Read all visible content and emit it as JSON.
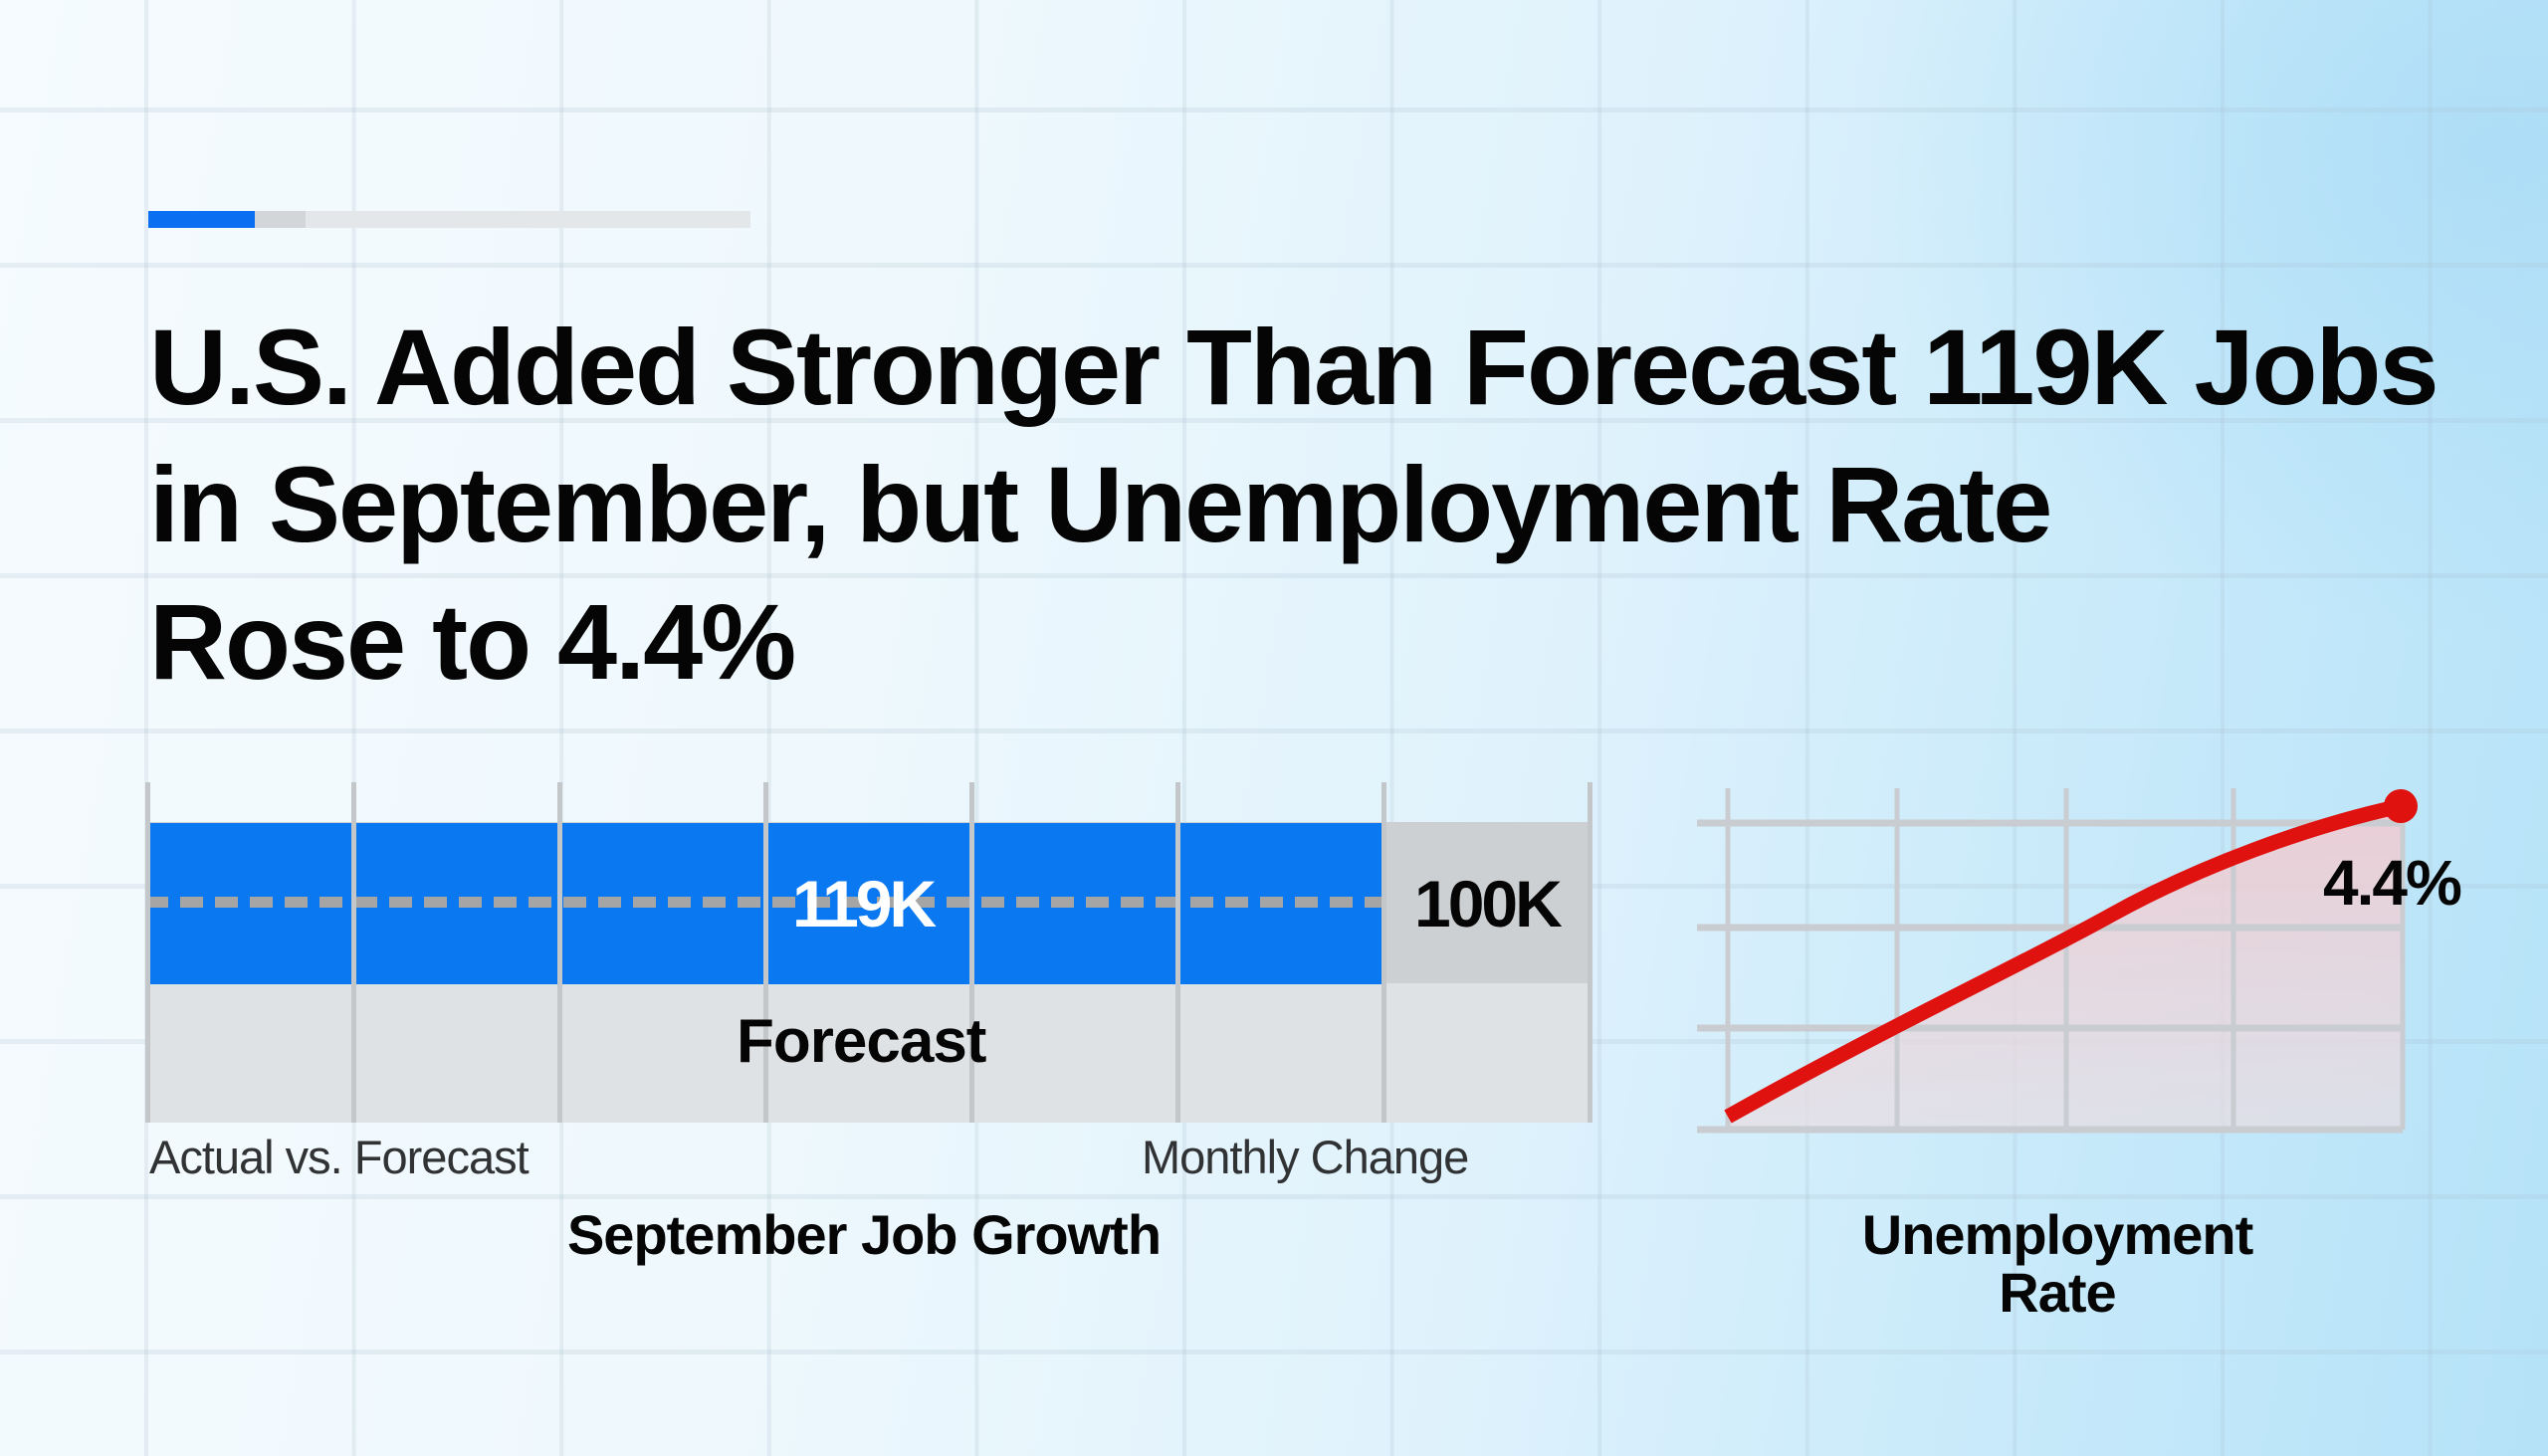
{
  "progress_indicator": {
    "active_color": "#0a6ff0",
    "segments": [
      "active",
      "partial",
      "remaining"
    ]
  },
  "headline": {
    "lines": [
      "U.S. Added Stronger Than Forecast 119K Jobs",
      "in September, but  Unemployment Rate",
      "Rose to 4.4%"
    ]
  },
  "job_growth_chart": {
    "title": "September Job Growth",
    "actual_label": "119K",
    "forecast_value_label": "100K",
    "forecast_band_label": "Forecast",
    "x_label_left": "Actual vs. Forecast",
    "x_label_right": "Monthly Change",
    "actual_color": "#0a78f0",
    "forecast_color": "#cdd0d2"
  },
  "unemployment_chart": {
    "title_line1": "Unemployment",
    "title_line2": "Rate",
    "end_label": "4.4%",
    "line_color": "#e0120f"
  },
  "chart_data": [
    {
      "type": "bar",
      "title": "September Job Growth",
      "orientation": "horizontal",
      "categories": [
        "Actual",
        "Forecast"
      ],
      "values": [
        119,
        100
      ],
      "value_labels": [
        "119K",
        "100K"
      ],
      "unit": "thousand jobs",
      "xlabel": "Monthly Change",
      "ylabel": "Actual vs. Forecast",
      "annotations": [
        "Forecast"
      ],
      "grid": true,
      "legend": null
    },
    {
      "type": "line",
      "title": "Unemployment Rate",
      "x": [
        0,
        1,
        2,
        3,
        4
      ],
      "series": [
        {
          "name": "Unemployment Rate",
          "values": [
            null,
            null,
            null,
            null,
            4.4
          ],
          "shape": "rising line, filled area below"
        }
      ],
      "end_point_label": "4.4%",
      "xlabel": "",
      "ylabel": "",
      "grid": true,
      "legend": null
    }
  ]
}
